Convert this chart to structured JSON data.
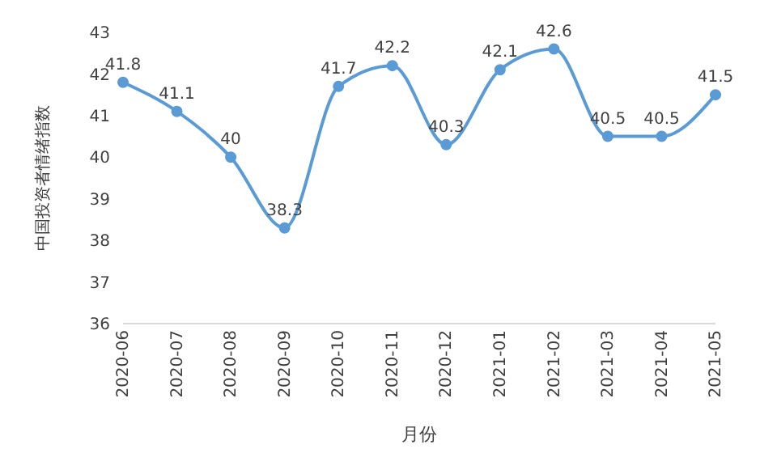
{
  "chart_data": {
    "type": "line",
    "xlabel": "月份",
    "ylabel": "中国投资者情绪指数",
    "categories": [
      "2020-06",
      "2020-07",
      "2020-08",
      "2020-09",
      "2020-10",
      "2020-11",
      "2020-12",
      "2021-01",
      "2021-02",
      "2021-03",
      "2021-04",
      "2021-05"
    ],
    "series": [
      {
        "color": "#5b9bd5",
        "values": [
          41.8,
          41.1,
          40,
          38.3,
          41.7,
          42.2,
          40.3,
          42.1,
          42.6,
          40.5,
          40.5,
          41.5
        ]
      }
    ],
    "ylim": [
      36,
      43
    ],
    "yticks": [
      36,
      37,
      38,
      39,
      40,
      41,
      42,
      43
    ],
    "grid": false,
    "legend": false,
    "marker": "circle",
    "data_labels": true
  }
}
